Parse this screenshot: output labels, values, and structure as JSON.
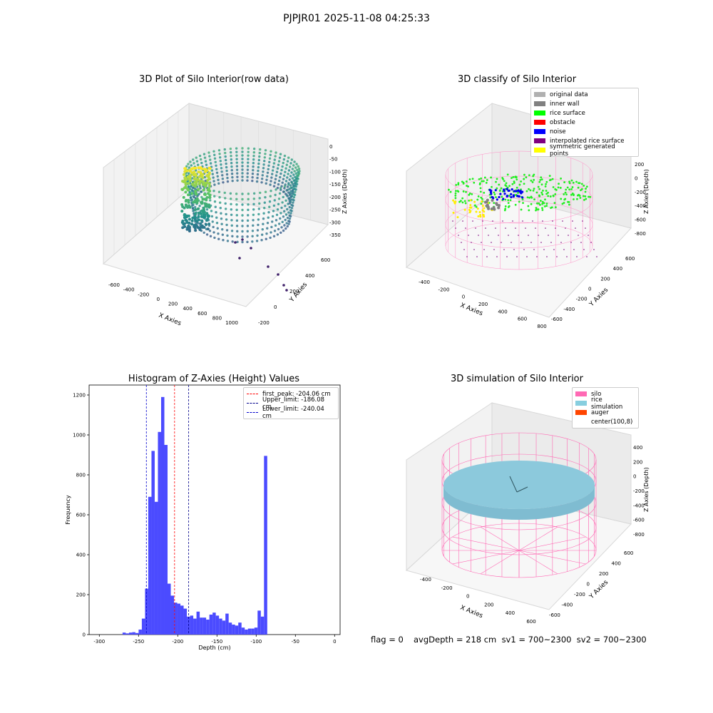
{
  "suptitle": "PJPJR01 2025-11-08 04:25:33",
  "chart_data": [
    {
      "type": "scatter",
      "title": "3D Plot of Silo Interior(row data)",
      "xlabel": "X Axies",
      "ylabel": "Y Axies",
      "zlabel": "Z Axies (Depth)",
      "x_ticks": [
        "-600",
        "-400",
        "-200",
        "0",
        "200",
        "400",
        "600",
        "800",
        "1000"
      ],
      "y_ticks": [
        "-200",
        "0",
        "200",
        "400",
        "600"
      ],
      "z_ticks": [
        "0",
        "-50",
        "-100",
        "-150",
        "-200",
        "-250",
        "-300",
        "-350"
      ],
      "colormap": "viridis"
    },
    {
      "type": "scatter",
      "title": "3D classify of Silo Interior",
      "xlabel": "X Axies",
      "ylabel": "Y Axies",
      "zlabel": "Z Axies (Depth)",
      "x_ticks": [
        "-400",
        "-200",
        "0",
        "200",
        "400",
        "600",
        "800"
      ],
      "y_ticks": [
        "-600",
        "-400",
        "-200",
        "0",
        "200",
        "400",
        "600"
      ],
      "z_ticks": [
        "200",
        "0",
        "-200",
        "-400",
        "-600",
        "-800"
      ],
      "legend": [
        {
          "label": "original data",
          "color": "#b0b0b0"
        },
        {
          "label": "inner wall",
          "color": "#808080"
        },
        {
          "label": "rice surface",
          "color": "#00ff00"
        },
        {
          "label": "obstacle",
          "color": "#ff0000"
        },
        {
          "label": "noise",
          "color": "#0000ff"
        },
        {
          "label": "interpolated rice surface",
          "color": "#800080"
        },
        {
          "label": "symmetric generated points",
          "color": "#ffff00"
        }
      ]
    },
    {
      "type": "bar",
      "title": "Histogram of Z-Axies (Height) Values",
      "xlabel": "Depth (cm)",
      "ylabel": "Frequency",
      "xlim": [
        -313,
        7
      ],
      "ylim": [
        0,
        1250
      ],
      "x_ticks": [
        -300,
        -250,
        -200,
        -150,
        -100,
        -50,
        0
      ],
      "y_ticks": [
        0,
        200,
        400,
        600,
        800,
        1000,
        1200
      ],
      "bar_color": "#4b4bff",
      "bins": [
        {
          "x0": -270.4,
          "x1": -266.3,
          "value": 10
        },
        {
          "x0": -266.3,
          "x1": -262.2,
          "value": 6
        },
        {
          "x0": -262.2,
          "x1": -258.1,
          "value": 10
        },
        {
          "x0": -258.1,
          "x1": -254.0,
          "value": 12
        },
        {
          "x0": -254.0,
          "x1": -249.9,
          "value": 8
        },
        {
          "x0": -249.9,
          "x1": -245.8,
          "value": 25
        },
        {
          "x0": -245.8,
          "x1": -241.7,
          "value": 80
        },
        {
          "x0": -241.7,
          "x1": -237.6,
          "value": 230
        },
        {
          "x0": -237.6,
          "x1": -233.5,
          "value": 690
        },
        {
          "x0": -233.5,
          "x1": -229.4,
          "value": 920
        },
        {
          "x0": -229.4,
          "x1": -225.3,
          "value": 665
        },
        {
          "x0": -225.3,
          "x1": -221.2,
          "value": 1015
        },
        {
          "x0": -221.2,
          "x1": -217.1,
          "value": 1190
        },
        {
          "x0": -217.1,
          "x1": -213.0,
          "value": 950
        },
        {
          "x0": -213.0,
          "x1": -208.9,
          "value": 255
        },
        {
          "x0": -208.9,
          "x1": -204.8,
          "value": 195
        },
        {
          "x0": -204.8,
          "x1": -200.7,
          "value": 160
        },
        {
          "x0": -200.7,
          "x1": -196.6,
          "value": 155
        },
        {
          "x0": -196.6,
          "x1": -192.5,
          "value": 145
        },
        {
          "x0": -192.5,
          "x1": -188.4,
          "value": 130
        },
        {
          "x0": -188.4,
          "x1": -184.3,
          "value": 90
        },
        {
          "x0": -184.3,
          "x1": -180.2,
          "value": 95
        },
        {
          "x0": -180.2,
          "x1": -176.1,
          "value": 80
        },
        {
          "x0": -176.1,
          "x1": -172.0,
          "value": 115
        },
        {
          "x0": -172.0,
          "x1": -167.9,
          "value": 85
        },
        {
          "x0": -167.9,
          "x1": -163.8,
          "value": 85
        },
        {
          "x0": -163.8,
          "x1": -159.7,
          "value": 75
        },
        {
          "x0": -159.7,
          "x1": -155.6,
          "value": 100
        },
        {
          "x0": -155.6,
          "x1": -151.5,
          "value": 110
        },
        {
          "x0": -151.5,
          "x1": -147.4,
          "value": 95
        },
        {
          "x0": -147.4,
          "x1": -143.3,
          "value": 80
        },
        {
          "x0": -143.3,
          "x1": -139.2,
          "value": 70
        },
        {
          "x0": -139.2,
          "x1": -135.1,
          "value": 105
        },
        {
          "x0": -135.1,
          "x1": -131.0,
          "value": 60
        },
        {
          "x0": -131.0,
          "x1": -126.9,
          "value": 50
        },
        {
          "x0": -126.9,
          "x1": -122.8,
          "value": 45
        },
        {
          "x0": -122.8,
          "x1": -118.7,
          "value": 60
        },
        {
          "x0": -118.7,
          "x1": -114.6,
          "value": 35
        },
        {
          "x0": -114.6,
          "x1": -110.5,
          "value": 25
        },
        {
          "x0": -110.5,
          "x1": -106.4,
          "value": 30
        },
        {
          "x0": -106.4,
          "x1": -102.3,
          "value": 30
        },
        {
          "x0": -102.3,
          "x1": -98.2,
          "value": 35
        },
        {
          "x0": -98.2,
          "x1": -94.1,
          "value": 120
        },
        {
          "x0": -94.1,
          "x1": -90.0,
          "value": 90
        },
        {
          "x0": -90.0,
          "x1": -85.9,
          "value": 895
        }
      ],
      "vlines": [
        {
          "x": -204.06,
          "color": "#ff0000",
          "label": "first_peak: -204.06 cm"
        },
        {
          "x": -186.08,
          "color": "#00008b",
          "label": "Upper_limit: -186.08 cm"
        },
        {
          "x": -240.04,
          "color": "#0000cd",
          "label": "Lower_limit: -240.04 cm"
        }
      ]
    },
    {
      "type": "scatter",
      "title": "3D simulation of Silo Interior",
      "xlabel": "X Axies",
      "ylabel": "Y Axies",
      "zlabel": "Z Axies (Depth)",
      "x_ticks": [
        "-400",
        "-200",
        "0",
        "200",
        "400",
        "600"
      ],
      "y_ticks": [
        "-600",
        "-400",
        "-200",
        "0",
        "200",
        "400",
        "600"
      ],
      "z_ticks": [
        "400",
        "200",
        "0",
        "-200",
        "-400",
        "-600",
        "-800"
      ],
      "legend": [
        {
          "label": "silo",
          "color": "#ff69b4"
        },
        {
          "label": "rice simulation",
          "color": "#87cedf"
        },
        {
          "label": "auger",
          "color": "#ff4500"
        },
        {
          "label": "center(100,8)",
          "color": ""
        }
      ]
    }
  ],
  "footer": {
    "flag": "flag = 0",
    "avg": "avgDepth = 218 cm  sv1 = 700~2300  sv2 = 700~2300"
  }
}
